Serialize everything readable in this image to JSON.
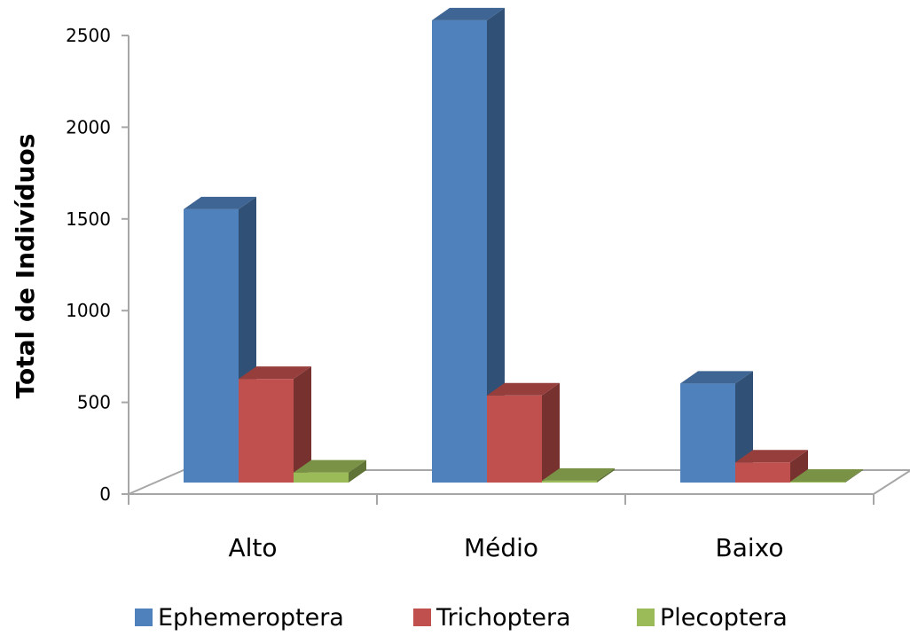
{
  "chart_data": {
    "type": "bar",
    "three_d": true,
    "categories": [
      "Alto",
      "Médio",
      "Baixo"
    ],
    "series": [
      {
        "name": "Ephemeroptera",
        "values": [
          1490,
          2520,
          540
        ],
        "color": "#4f81bd"
      },
      {
        "name": "Trichoptera",
        "values": [
          565,
          475,
          110
        ],
        "color": "#c0504d"
      },
      {
        "name": "Plecoptera",
        "values": [
          55,
          10,
          5
        ],
        "color": "#9bbb59"
      }
    ],
    "ylabel": "Total de Indivíduos",
    "xlabel": "",
    "title": "",
    "ylim": [
      0,
      2500
    ],
    "yticks": [
      "0",
      "500",
      "1000",
      "1500",
      "2000",
      "2500"
    ],
    "legend_position": "bottom",
    "grid": false
  }
}
